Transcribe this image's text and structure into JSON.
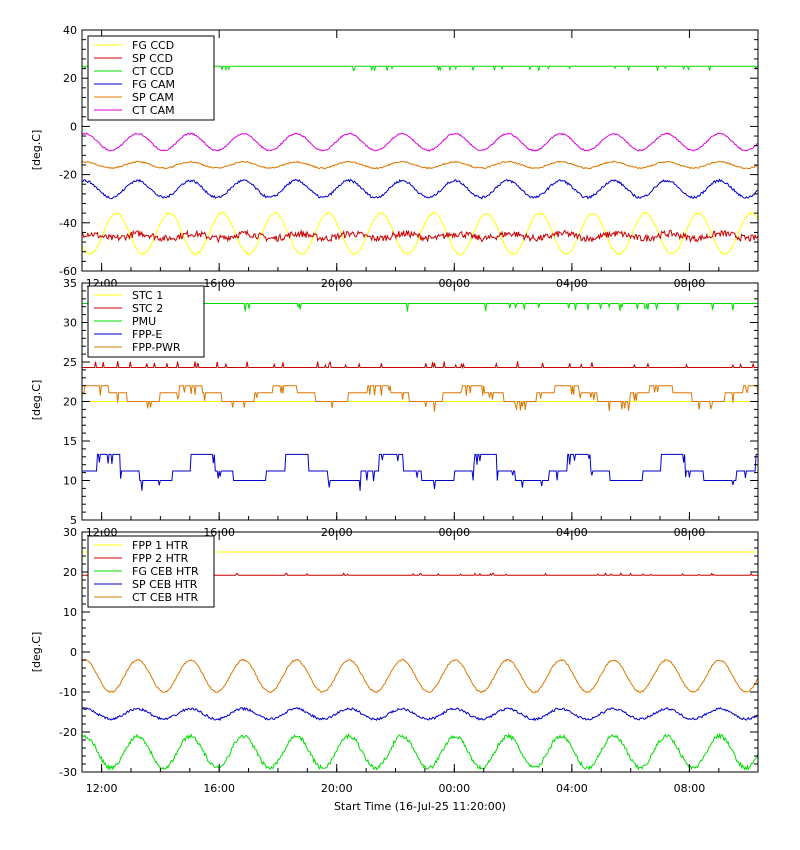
{
  "xlabel": "Start Time (16-Jul-25 11:20:00)",
  "x_tick_labels": [
    "12:00",
    "16:00",
    "20:00",
    "00:00",
    "04:00",
    "08:00"
  ],
  "x_tick_hours": [
    0.667,
    4.667,
    8.667,
    12.667,
    16.667,
    20.667
  ],
  "x_range_hours": [
    0,
    23
  ],
  "chart_data": [
    {
      "type": "line",
      "ylabel": "[deg.C]",
      "ylim": [
        -60,
        40
      ],
      "y_major_ticks": [
        -60,
        -40,
        -20,
        0,
        20,
        40
      ],
      "legend_position": "top-left",
      "series": [
        {
          "name": "FG CCD",
          "color": "#ffff00",
          "base": -44.5,
          "amp": 8.5,
          "period": 1.8,
          "phase": 1.2,
          "noise": 0.4,
          "spikes": 0
        },
        {
          "name": "SP CCD",
          "color": "#cc0000",
          "base": -45.5,
          "amp": 1.0,
          "period": 1.8,
          "phase": 0.3,
          "noise": 1.4,
          "spikes": 0
        },
        {
          "name": "CT CCD",
          "color": "#00dd00",
          "base": 25.0,
          "amp": 0,
          "period": 1.8,
          "phase": 0,
          "noise": 0,
          "spikes": -2.0
        },
        {
          "name": "FG CAM",
          "color": "#0000cc",
          "base": -26.0,
          "amp": 3.5,
          "period": 1.8,
          "phase": 0.4,
          "noise": 0.5,
          "spikes": 0
        },
        {
          "name": "SP CAM",
          "color": "#dd7700",
          "base": -16.0,
          "amp": 1.3,
          "period": 1.8,
          "phase": 0.4,
          "noise": 0.3,
          "spikes": 0
        },
        {
          "name": "CT CAM",
          "color": "#dd00dd",
          "base": -6.5,
          "amp": 3.5,
          "period": 1.8,
          "phase": 0.4,
          "noise": 0.3,
          "spikes": 0
        }
      ]
    },
    {
      "type": "line",
      "ylabel": "[deg.C]",
      "ylim": [
        5,
        35
      ],
      "y_major_ticks": [
        5,
        10,
        15,
        20,
        25,
        30,
        35
      ],
      "legend_position": "top-left",
      "series": [
        {
          "name": "STC 1",
          "color": "#ffff00",
          "base": 20.0,
          "amp": 0,
          "period": 1.8,
          "phase": 0,
          "noise": 0,
          "spikes": 0
        },
        {
          "name": "STC 2",
          "color": "#cc0000",
          "base": 24.3,
          "amp": 0,
          "period": 1.8,
          "phase": 0,
          "noise": 0,
          "spikes": 0.8
        },
        {
          "name": "PMU",
          "color": "#00dd00",
          "base": 32.4,
          "amp": 0,
          "period": 1.8,
          "phase": 0,
          "noise": 0,
          "spikes": -1.0
        },
        {
          "name": "FPP-E",
          "color": "#0000cc",
          "base": 10.0,
          "amp": 0,
          "period": 1.8,
          "phase": 0,
          "noise": 0,
          "steps": [
            10,
            11.2,
            12.3,
            13.3
          ],
          "spikes": -1.3
        },
        {
          "name": "FPP-PWR",
          "color": "#dd7700",
          "base": 20.0,
          "amp": 0,
          "period": 1.8,
          "phase": 0,
          "noise": 0,
          "steps": [
            20,
            21.1,
            22.0
          ],
          "spikes": -1.3
        }
      ]
    },
    {
      "type": "line",
      "ylabel": "[deg.C]",
      "ylim": [
        -30,
        30
      ],
      "y_major_ticks": [
        -30,
        -20,
        -10,
        0,
        10,
        20,
        30
      ],
      "legend_position": "top-left",
      "series": [
        {
          "name": "FPP 1 HTR",
          "color": "#ffff00",
          "base": 25.0,
          "amp": 0,
          "period": 1.8,
          "phase": 0,
          "noise": 0,
          "spikes": 0
        },
        {
          "name": "FPP 2 HTR",
          "color": "#cc0000",
          "base": 19.2,
          "amp": 0,
          "period": 1.8,
          "phase": 0,
          "noise": 0,
          "spikes": 0.5
        },
        {
          "name": "FG CEB HTR",
          "color": "#00dd00",
          "base": -25.0,
          "amp": 4.0,
          "period": 1.8,
          "phase": 0.4,
          "noise": 0.5,
          "spikes": 0
        },
        {
          "name": "SP CEB HTR",
          "color": "#0000cc",
          "base": -15.5,
          "amp": 1.3,
          "period": 1.8,
          "phase": 0.4,
          "noise": 0.3,
          "spikes": 0
        },
        {
          "name": "CT CEB HTR",
          "color": "#dd7700",
          "base": -6.0,
          "amp": 4.0,
          "period": 1.8,
          "phase": 0.4,
          "noise": 0.2,
          "spikes": 0
        }
      ]
    }
  ]
}
